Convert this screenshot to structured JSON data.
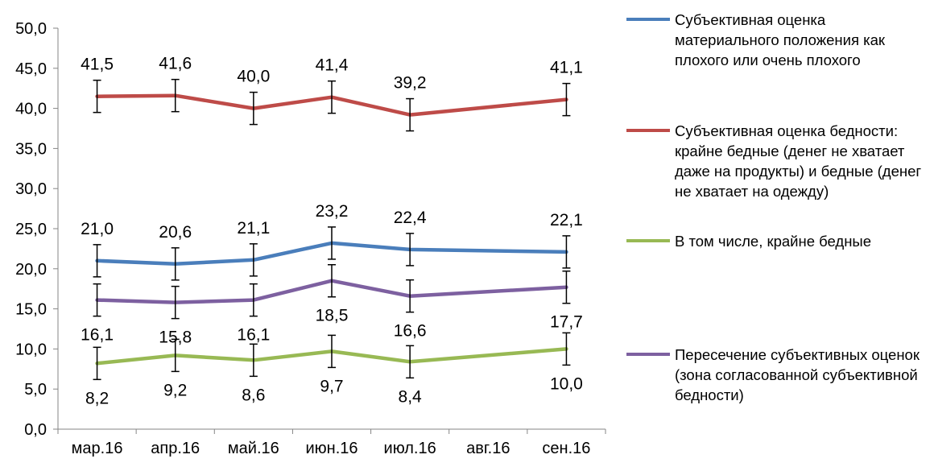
{
  "chart_data": {
    "type": "line",
    "categories": [
      "мар.16",
      "апр.16",
      "май.16",
      "июн.16",
      "июл.16",
      "авг.16",
      "сен.16"
    ],
    "ylim": [
      0,
      50
    ],
    "yticks": [
      "0,0",
      "5,0",
      "10,0",
      "15,0",
      "20,0",
      "25,0",
      "30,0",
      "35,0",
      "40,0",
      "45,0",
      "50,0"
    ],
    "error_bars": true,
    "legend_position": "right",
    "series": [
      {
        "name": "Субъективная оценка материального положения как плохого или очень плохого",
        "color": "#4a7ebb",
        "values": [
          21.0,
          20.6,
          21.1,
          23.2,
          22.4,
          null,
          22.1
        ],
        "labels": [
          "21,0",
          "20,6",
          "21,1",
          "23,2",
          "22,4",
          null,
          "22,1"
        ],
        "label_position": "above"
      },
      {
        "name": "Субъективная оценка бедности: крайне бедные (денег не хватает даже на продукты) и бедные (денег не хватает на одежду)",
        "color": "#be4b48",
        "values": [
          41.5,
          41.6,
          40.0,
          41.4,
          39.2,
          null,
          41.1
        ],
        "labels": [
          "41,5",
          "41,6",
          "40,0",
          "41,4",
          "39,2",
          null,
          "41,1"
        ],
        "label_position": "above"
      },
      {
        "name": "В том числе, крайне бедные",
        "color": "#98b954",
        "values": [
          8.2,
          9.2,
          8.6,
          9.7,
          8.4,
          null,
          10.0
        ],
        "labels": [
          "8,2",
          "9,2",
          "8,6",
          "9,7",
          "8,4",
          null,
          "10,0"
        ],
        "label_position": "below"
      },
      {
        "name": "Пересечение субъективных оценок (зона согласованной субъективной бедности)",
        "color": "#7d60a0",
        "values": [
          16.1,
          15.8,
          16.1,
          18.5,
          16.6,
          null,
          17.7
        ],
        "labels": [
          "16,1",
          "15,8",
          "16,1",
          "18,5",
          "16,6",
          null,
          "17,7"
        ],
        "label_position": "below"
      }
    ]
  },
  "legend": {
    "items": [
      {
        "label": "Субъективная оценка материального положения как плохого или очень плохого",
        "color": "#4a7ebb"
      },
      {
        "label": "Субъективная оценка бедности: крайне бедные (денег не хватает даже на продукты) и бедные (денег не хватает на одежду)",
        "color": "#be4b48"
      },
      {
        "label": "В том числе, крайне бедные",
        "color": "#98b954"
      },
      {
        "label": "Пересечение субъективных оценок (зона согласованной субъективной бедности)",
        "color": "#7d60a0"
      }
    ]
  }
}
